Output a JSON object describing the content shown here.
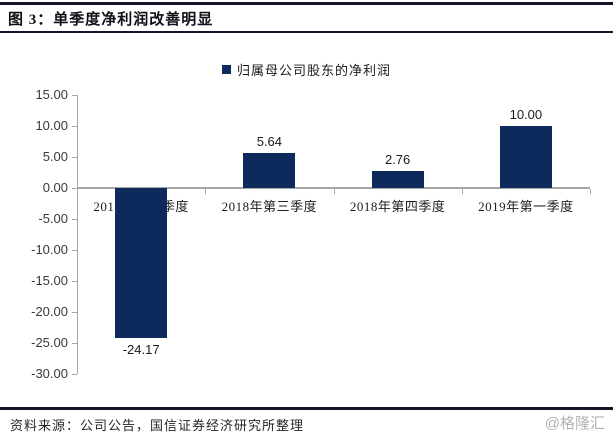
{
  "header": {
    "title": "图 3：单季度净利润改善明显"
  },
  "legend": {
    "label": "归属母公司股东的净利润",
    "swatch_color": "#0e2a5c"
  },
  "chart_data": {
    "type": "bar",
    "title": "单季度净利润改善明显",
    "categories": [
      "2018年第二季度",
      "2018年第三季度",
      "2018年第四季度",
      "2019年第一季度"
    ],
    "series": [
      {
        "name": "归属母公司股东的净利润",
        "values": [
          -24.17,
          5.64,
          2.76,
          10.0
        ]
      }
    ],
    "value_labels": [
      "-24.17",
      "5.64",
      "2.76",
      "10.00"
    ],
    "y_tick_labels": [
      "15.00",
      "10.00",
      "5.00",
      "0.00",
      "-5.00",
      "-10.00",
      "-15.00",
      "-20.00",
      "-25.00",
      "-30.00"
    ],
    "ylim": [
      -30,
      15
    ],
    "xlabel": "",
    "ylabel": "",
    "grid": false,
    "legend_position": "top",
    "bar_color": "#0e2a5c",
    "axis_color": "#a6a6a6"
  },
  "footer": {
    "source": "资料来源：公司公告，国信证券经济研究所整理",
    "watermark": "@格隆汇"
  }
}
